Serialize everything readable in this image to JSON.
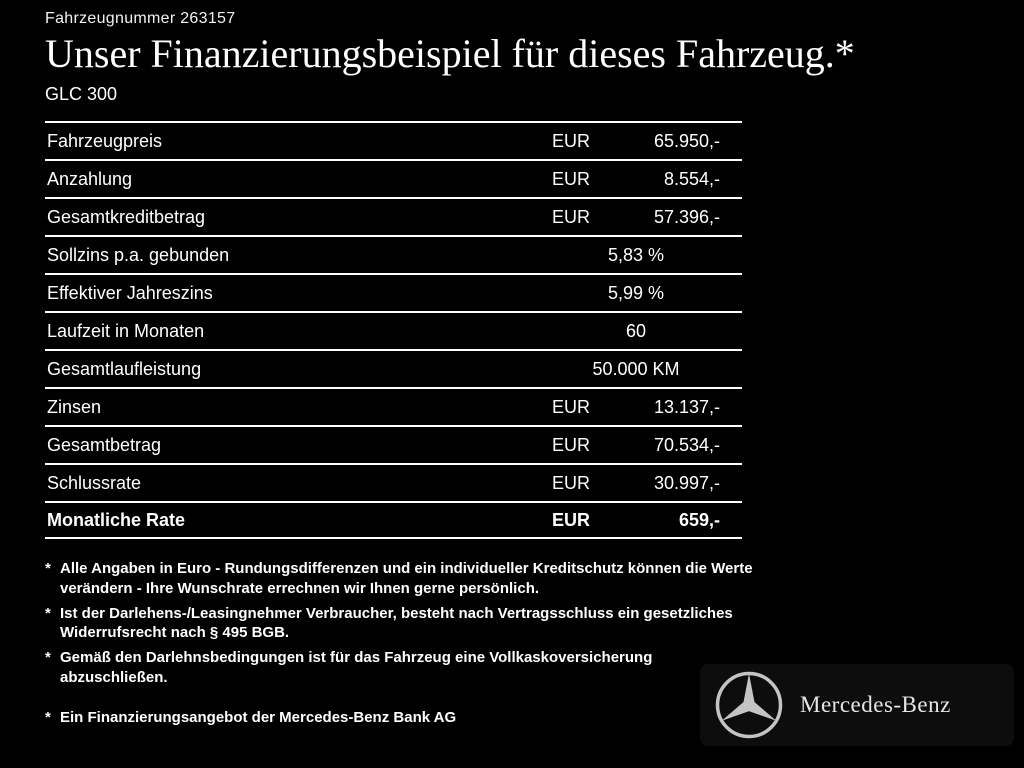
{
  "header": {
    "vehicle_number": "Fahrzeugnummer 263157",
    "title": "Unser Finanzierungsbeispiel für dieses Fahrzeug.*",
    "model": "GLC 300"
  },
  "table": {
    "rows": [
      {
        "label": "Fahrzeugpreis",
        "unit": "EUR",
        "value": "65.950,-",
        "bold": false
      },
      {
        "label": "Anzahlung",
        "unit": "EUR",
        "value": "8.554,-",
        "bold": false
      },
      {
        "label": "Gesamtkreditbetrag",
        "unit": "EUR",
        "value": "57.396,-",
        "bold": false
      },
      {
        "label": "Sollzins p.a. gebunden",
        "unit": "",
        "value": "5,83 %",
        "bold": false
      },
      {
        "label": "Effektiver Jahreszins",
        "unit": "",
        "value": "5,99 %",
        "bold": false
      },
      {
        "label": "Laufzeit in Monaten",
        "unit": "",
        "value": "60",
        "bold": false
      },
      {
        "label": "Gesamtlaufleistung",
        "unit": "",
        "value": "50.000 KM",
        "bold": false
      },
      {
        "label": "Zinsen",
        "unit": "EUR",
        "value": "13.137,-",
        "bold": false
      },
      {
        "label": "Gesamtbetrag",
        "unit": "EUR",
        "value": "70.534,-",
        "bold": false
      },
      {
        "label": "Schlussrate",
        "unit": "EUR",
        "value": "30.997,-",
        "bold": false
      },
      {
        "label": "Monatliche Rate",
        "unit": "EUR",
        "value": "659,-",
        "bold": true
      }
    ]
  },
  "marker": "*",
  "footnotes": [
    "Alle Angaben in Euro - Rundungsdifferenzen und ein individueller Kreditschutz können die Werte verändern - Ihre Wunschrate errechnen wir Ihnen gerne persönlich.",
    "Ist der Darlehens-/Leasingnehmer Verbraucher, besteht nach Vertragsschluss ein gesetzliches Widerrufsrecht nach § 495 BGB.",
    "Gemäß den Darlehnsbedingungen ist für das Fahrzeug eine Vollkaskoversicherung abzuschließen."
  ],
  "bank_note": "Ein Finanzierungsangebot der Mercedes-Benz Bank AG",
  "brand": {
    "name": "Mercedes-Benz"
  },
  "colors": {
    "background": "#000000",
    "text": "#ffffff",
    "star": "#c4c4c4"
  }
}
